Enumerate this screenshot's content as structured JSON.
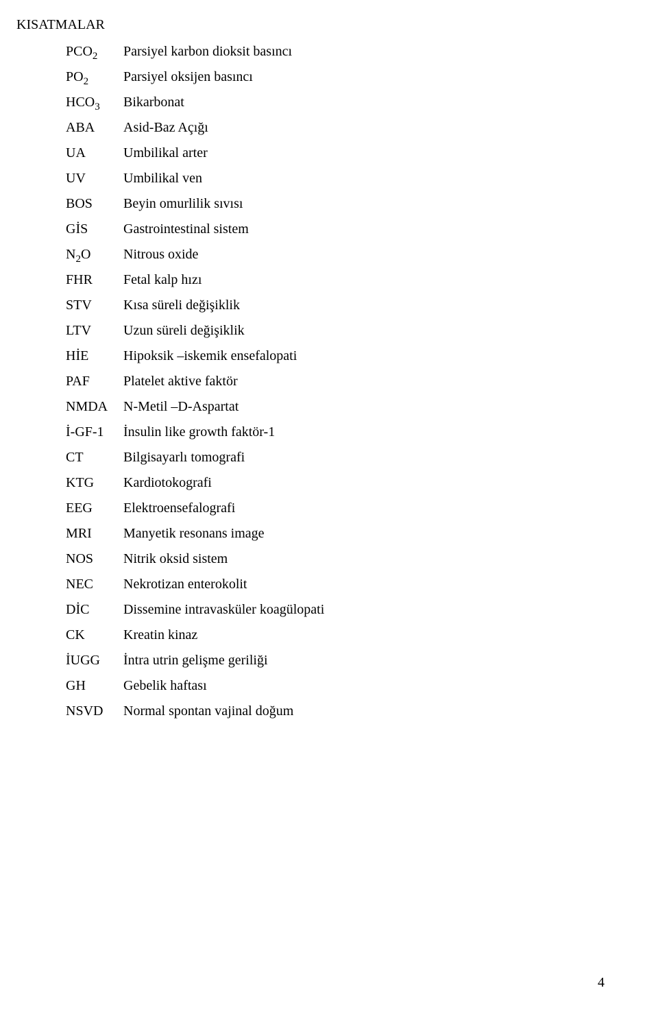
{
  "title": "KISATMALAR",
  "abbreviations": [
    {
      "code_html": "PCO<span class=\"sub\">2</span>",
      "desc": "Parsiyel karbon dioksit basıncı"
    },
    {
      "code_html": "PO<span class=\"sub\">2</span>",
      "desc": "Parsiyel oksijen basıncı"
    },
    {
      "code_html": "HCO<span class=\"sub\">3</span>",
      "desc": "Bikarbonat"
    },
    {
      "code_html": "ABA",
      "desc": "Asid-Baz Açığı"
    },
    {
      "code_html": "UA",
      "desc": "Umbilikal arter"
    },
    {
      "code_html": "UV",
      "desc": "Umbilikal ven"
    },
    {
      "code_html": "BOS",
      "desc": "Beyin omurlilik sıvısı"
    },
    {
      "code_html": "GİS",
      "desc": "Gastrointestinal sistem"
    },
    {
      "code_html": "N<span class=\"sub\">2</span>O",
      "desc": "Nitrous oxide"
    },
    {
      "code_html": "FHR",
      "desc": "Fetal kalp hızı"
    },
    {
      "code_html": "STV",
      "desc": "Kısa süreli değişiklik"
    },
    {
      "code_html": "LTV",
      "desc": "Uzun süreli değişiklik"
    },
    {
      "code_html": "HİE",
      "desc": "Hipoksik –iskemik ensefalopati"
    },
    {
      "code_html": "PAF",
      "desc": "Platelet aktive faktör"
    },
    {
      "code_html": "NMDA",
      "desc": "N-Metil –D-Aspartat"
    },
    {
      "code_html": "İ-GF-1",
      "desc": "İnsulin like growth faktör-1"
    },
    {
      "code_html": "CT",
      "desc": "Bilgisayarlı tomografi"
    },
    {
      "code_html": "KTG",
      "desc": "Kardiotokografi"
    },
    {
      "code_html": "EEG",
      "desc": "Elektroensefalografi"
    },
    {
      "code_html": "MRI",
      "desc": "Manyetik resonans image"
    },
    {
      "code_html": "NOS",
      "desc": "Nitrik oksid sistem"
    },
    {
      "code_html": "NEC",
      "desc": "Nekrotizan enterokolit"
    },
    {
      "code_html": "DİC",
      "desc": "Dissemine intravasküler koagülopati"
    },
    {
      "code_html": "CK",
      "desc": "Kreatin kinaz"
    },
    {
      "code_html": "İUGG",
      "desc": "İntra utrin gelişme geriliği"
    },
    {
      "code_html": "GH",
      "desc": "Gebelik haftası"
    },
    {
      "code_html": "NSVD",
      "desc": "Normal spontan vajinal doğum"
    }
  ],
  "page_number": "4"
}
